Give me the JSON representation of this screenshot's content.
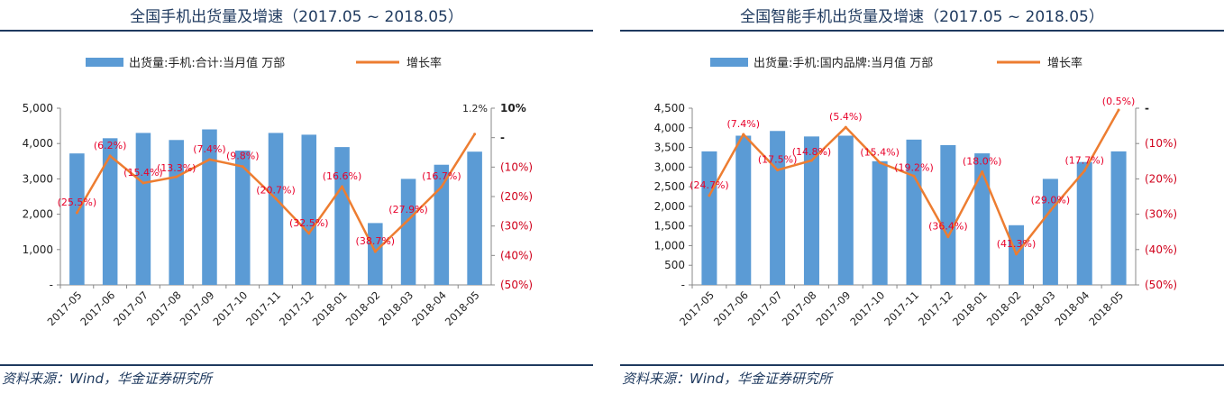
{
  "panels": [
    {
      "title": "全国手机出货量及增速（2017.05 ~ 2018.05）",
      "source": "资料来源：Wind，华金证券研究所"
    },
    {
      "title": "全国智能手机出货量及增速（2017.05 ~ 2018.05）",
      "source": "资料来源：Wind，华金证券研究所"
    }
  ],
  "chart_data": [
    {
      "type": "bar",
      "categories": [
        "2017-05",
        "2017-06",
        "2017-07",
        "2017-08",
        "2017-09",
        "2017-10",
        "2017-11",
        "2017-12",
        "2018-01",
        "2018-02",
        "2018-03",
        "2018-04",
        "2018-05"
      ],
      "series": [
        {
          "name": "出货量:手机:合计:当月值 万部",
          "type": "bar",
          "axis": "left",
          "values": [
            3720,
            4150,
            4300,
            4100,
            4400,
            3800,
            4300,
            4250,
            3900,
            1750,
            3000,
            3400,
            3770
          ]
        },
        {
          "name": "增长率",
          "type": "line",
          "axis": "right",
          "values": [
            -25.5,
            -6.2,
            -15.4,
            -13.3,
            -7.4,
            -9.8,
            -20.7,
            -32.5,
            -16.6,
            -38.7,
            -27.9,
            -16.7,
            1.2
          ]
        }
      ],
      "data_labels": [
        "(25.5%)",
        "(6.2%)",
        "(15.4%)",
        "(13.3%)",
        "(7.4%)",
        "(9.8%)",
        "(20.7%)",
        "(32.5%)",
        "(16.6%)",
        "(38.7%)",
        "(27.9%)",
        "(16.7%)",
        "1.2%"
      ],
      "ylim_left": [
        0,
        5000
      ],
      "left_ticks": [
        "-",
        "1,000",
        "2,000",
        "3,000",
        "4,000",
        "5,000"
      ],
      "ylim_right": [
        -50,
        10
      ],
      "right_ticks": [
        "(50%)",
        "(40%)",
        "(30%)",
        "(20%)",
        "(10%)",
        "-",
        "10%"
      ],
      "colors": {
        "bar": "#5b9bd5",
        "line": "#ed7d31",
        "label": "#e8002a"
      }
    },
    {
      "type": "bar",
      "categories": [
        "2017-05",
        "2017-06",
        "2017-07",
        "2017-08",
        "2017-09",
        "2017-10",
        "2017-11",
        "2017-12",
        "2018-01",
        "2018-02",
        "2018-03",
        "2018-04",
        "2018-05"
      ],
      "series": [
        {
          "name": "出货量:手机:国内品牌:当月值 万部",
          "type": "bar",
          "axis": "left",
          "values": [
            3400,
            3800,
            3920,
            3780,
            3800,
            3150,
            3700,
            3560,
            3350,
            1520,
            2700,
            3130,
            3400
          ]
        },
        {
          "name": "增长率",
          "type": "line",
          "axis": "right",
          "values": [
            -24.7,
            -7.4,
            -17.5,
            -14.8,
            -5.4,
            -15.4,
            -19.2,
            -36.4,
            -18.0,
            -41.3,
            -29.0,
            -17.7,
            -0.5
          ]
        }
      ],
      "data_labels": [
        "(24.7%)",
        "(7.4%)",
        "(17.5%)",
        "(14.8%)",
        "(5.4%)",
        "(15.4%)",
        "(19.2%)",
        "(36.4%)",
        "(18.0%)",
        "(41.3%)",
        "(29.0%)",
        "(17.7%)",
        "(0.5%)"
      ],
      "ylim_left": [
        0,
        4500
      ],
      "left_ticks": [
        "-",
        "500",
        "1,000",
        "1,500",
        "2,000",
        "2,500",
        "3,000",
        "3,500",
        "4,000",
        "4,500"
      ],
      "ylim_right": [
        -50,
        0
      ],
      "right_ticks": [
        "(50%)",
        "(40%)",
        "(30%)",
        "(20%)",
        "(10%)",
        "-"
      ],
      "colors": {
        "bar": "#5b9bd5",
        "line": "#ed7d31",
        "label": "#e8002a"
      }
    }
  ]
}
